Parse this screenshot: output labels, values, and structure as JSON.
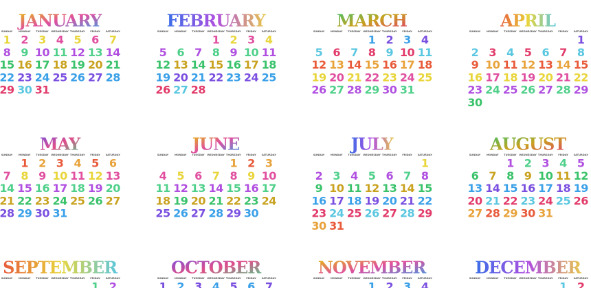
{
  "weekdays": [
    "SUNDAY",
    "MONDAY",
    "TUESDAY",
    "WEDNESDAY",
    "THURSDAY",
    "FRIDAY",
    "SATURDAY"
  ],
  "months": [
    {
      "name": "JANUARY",
      "weeks": [
        [
          1,
          2,
          3,
          4,
          5,
          6,
          7
        ],
        [
          8,
          9,
          10,
          11,
          12,
          13,
          14
        ],
        [
          15,
          16,
          17,
          18,
          19,
          20,
          21
        ],
        [
          22,
          23,
          24,
          25,
          26,
          27,
          28
        ],
        [
          29,
          30,
          31
        ]
      ]
    },
    {
      "name": "FEBRUARY",
      "weeks": [
        [
          null,
          null,
          null,
          1,
          2,
          3,
          4
        ],
        [
          5,
          6,
          7,
          8,
          9,
          10,
          11
        ],
        [
          12,
          13,
          14,
          15,
          16,
          17,
          18
        ],
        [
          19,
          20,
          21,
          22,
          23,
          24,
          25
        ],
        [
          26,
          27,
          28
        ]
      ]
    },
    {
      "name": "MARCH",
      "weeks": [
        [
          null,
          null,
          null,
          1,
          2,
          3,
          4
        ],
        [
          5,
          6,
          7,
          8,
          9,
          10,
          11
        ],
        [
          12,
          13,
          14,
          15,
          16,
          17,
          18
        ],
        [
          19,
          20,
          21,
          22,
          23,
          24,
          25
        ],
        [
          26,
          27,
          28,
          29,
          30,
          31
        ]
      ]
    },
    {
      "name": "APRIL",
      "weeks": [
        [
          null,
          null,
          null,
          null,
          null,
          null,
          1
        ],
        [
          2,
          3,
          4,
          5,
          6,
          7,
          8
        ],
        [
          9,
          10,
          11,
          12,
          13,
          14,
          15
        ],
        [
          16,
          17,
          18,
          19,
          20,
          21,
          22
        ],
        [
          23,
          24,
          25,
          26,
          27,
          28,
          29
        ],
        [
          30
        ]
      ]
    },
    {
      "name": "MAY",
      "weeks": [
        [
          null,
          1,
          2,
          3,
          4,
          5,
          6
        ],
        [
          7,
          8,
          9,
          10,
          11,
          12,
          13
        ],
        [
          14,
          15,
          16,
          17,
          18,
          19,
          20
        ],
        [
          21,
          22,
          23,
          24,
          25,
          26,
          27
        ],
        [
          28,
          29,
          30,
          31
        ]
      ]
    },
    {
      "name": "JUNE",
      "weeks": [
        [
          null,
          null,
          null,
          null,
          1,
          2,
          3
        ],
        [
          4,
          5,
          6,
          7,
          8,
          9,
          10
        ],
        [
          11,
          12,
          13,
          14,
          15,
          16,
          17
        ],
        [
          18,
          19,
          20,
          21,
          22,
          23,
          24
        ],
        [
          25,
          26,
          27,
          28,
          29,
          30
        ]
      ]
    },
    {
      "name": "JULY",
      "weeks": [
        [
          null,
          null,
          null,
          null,
          null,
          null,
          1
        ],
        [
          2,
          3,
          4,
          5,
          6,
          7,
          8
        ],
        [
          9,
          10,
          11,
          12,
          13,
          14,
          15
        ],
        [
          16,
          17,
          18,
          19,
          20,
          21,
          22
        ],
        [
          23,
          24,
          25,
          26,
          27,
          28,
          29
        ],
        [
          30,
          31
        ]
      ]
    },
    {
      "name": "AUGUST",
      "weeks": [
        [
          null,
          null,
          1,
          2,
          3,
          4,
          5
        ],
        [
          6,
          7,
          8,
          9,
          10,
          11,
          12
        ],
        [
          13,
          14,
          15,
          16,
          17,
          18,
          19
        ],
        [
          20,
          21,
          22,
          23,
          24,
          25,
          26
        ],
        [
          27,
          28,
          29,
          30,
          31
        ]
      ]
    },
    {
      "name": "SEPTEMBER",
      "weeks": [
        [
          null,
          null,
          null,
          null,
          null,
          1,
          2
        ]
      ]
    },
    {
      "name": "OCTOBER",
      "weeks": [
        [
          1,
          2,
          3,
          4,
          5,
          6,
          7
        ]
      ]
    },
    {
      "name": "NOVEMBER",
      "weeks": [
        [
          null,
          null,
          null,
          1,
          2,
          3,
          4
        ]
      ]
    },
    {
      "name": "DECEMBER",
      "weeks": [
        [
          null,
          null,
          null,
          null,
          null,
          1,
          2
        ]
      ]
    }
  ]
}
